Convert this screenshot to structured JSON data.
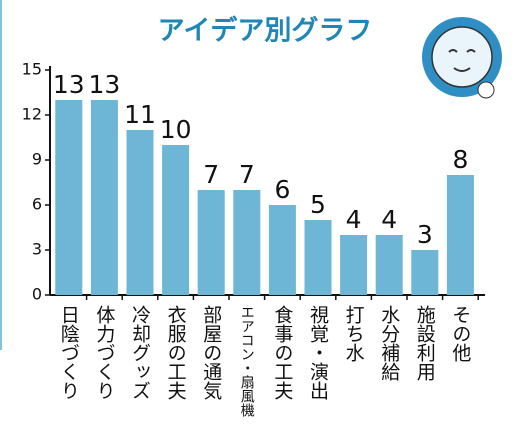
{
  "chart_data": {
    "type": "bar",
    "title": "アイデア別グラフ",
    "categories": [
      "日陰づくり",
      "体力づくり",
      "冷却グッズ",
      "衣服の工夫",
      "部屋の通気",
      "エアコン・扇風機",
      "食事の工夫",
      "視覚・演出",
      "打ち水",
      "水分補給",
      "施設利用",
      "その他"
    ],
    "values": [
      13,
      13,
      11,
      10,
      7,
      7,
      6,
      5,
      4,
      4,
      3,
      8
    ],
    "color": "#6db6d6",
    "ylim": [
      0,
      15
    ],
    "yticks": [
      0,
      3,
      6,
      9,
      12,
      15
    ],
    "grid": false
  }
}
